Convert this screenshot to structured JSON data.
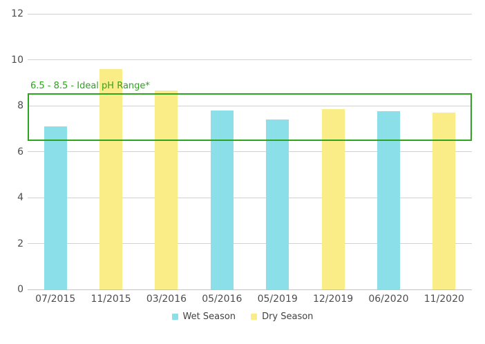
{
  "chart_data": {
    "type": "bar",
    "title": "",
    "xlabel": "",
    "ylabel": "",
    "categories": [
      "07/2015",
      "11/2015",
      "03/2016",
      "05/2016",
      "05/2019",
      "12/2019",
      "06/2020",
      "11/2020"
    ],
    "series": [
      {
        "name": "Wet Season",
        "color": "#8ADFE8",
        "values": [
          7.1,
          null,
          null,
          7.8,
          7.4,
          null,
          7.75,
          null
        ]
      },
      {
        "name": "Dry Season",
        "color": "#FAEC87",
        "values": [
          null,
          9.6,
          8.65,
          null,
          null,
          7.85,
          null,
          7.7
        ]
      }
    ],
    "points": [
      {
        "category": "07/2015",
        "series": "Wet Season",
        "value": 7.1
      },
      {
        "category": "11/2015",
        "series": "Dry Season",
        "value": 9.6
      },
      {
        "category": "03/2016",
        "series": "Dry Season",
        "value": 8.65
      },
      {
        "category": "05/2016",
        "series": "Wet Season",
        "value": 7.8
      },
      {
        "category": "05/2019",
        "series": "Wet Season",
        "value": 7.4
      },
      {
        "category": "12/2019",
        "series": "Dry Season",
        "value": 7.85
      },
      {
        "category": "06/2020",
        "series": "Wet Season",
        "value": 7.75
      },
      {
        "category": "11/2020",
        "series": "Dry Season",
        "value": 7.7
      }
    ],
    "ylim": [
      0,
      12
    ],
    "yticks": [
      0,
      2,
      4,
      6,
      8,
      10,
      12
    ],
    "grid": true,
    "legend_position": "bottom-center",
    "annotation": {
      "label": "6.5 - 8.5 - Ideal pH Range*",
      "range_low": 6.5,
      "range_high": 8.5,
      "color": "#2EA31E"
    },
    "colors": {
      "grid_line": "#d2d2d2",
      "axis_line": "#c4c4c4",
      "tick_label": "#4d4d4d",
      "legend_text": "#404040",
      "background": "#ffffff"
    }
  }
}
